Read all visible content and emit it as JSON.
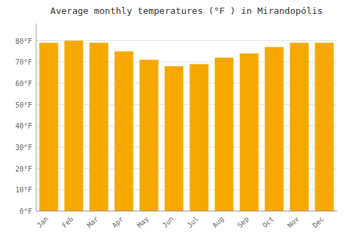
{
  "chart_data": {
    "type": "bar",
    "title": "Average monthly temperatures (°F ) in Mirandopólis",
    "categories": [
      "Jan",
      "Feb",
      "Mar",
      "Apr",
      "May",
      "Jun",
      "Jul",
      "Aug",
      "Sep",
      "Oct",
      "Nov",
      "Dec"
    ],
    "values": [
      79,
      80,
      79,
      75,
      71,
      68,
      69,
      72,
      74,
      77,
      79,
      79
    ],
    "color": "#F5A800",
    "ylim": [
      0,
      88
    ],
    "yticks": [
      {
        "value": 0,
        "label": "0°F"
      },
      {
        "value": 10,
        "label": "10°F"
      },
      {
        "value": 20,
        "label": "20°F"
      },
      {
        "value": 30,
        "label": "30°F"
      },
      {
        "value": 40,
        "label": "40°F"
      },
      {
        "value": 50,
        "label": "50°F"
      },
      {
        "value": 60,
        "label": "60°F"
      },
      {
        "value": 70,
        "label": "70°F"
      },
      {
        "value": 80,
        "label": "80°F"
      }
    ],
    "grid": true
  }
}
